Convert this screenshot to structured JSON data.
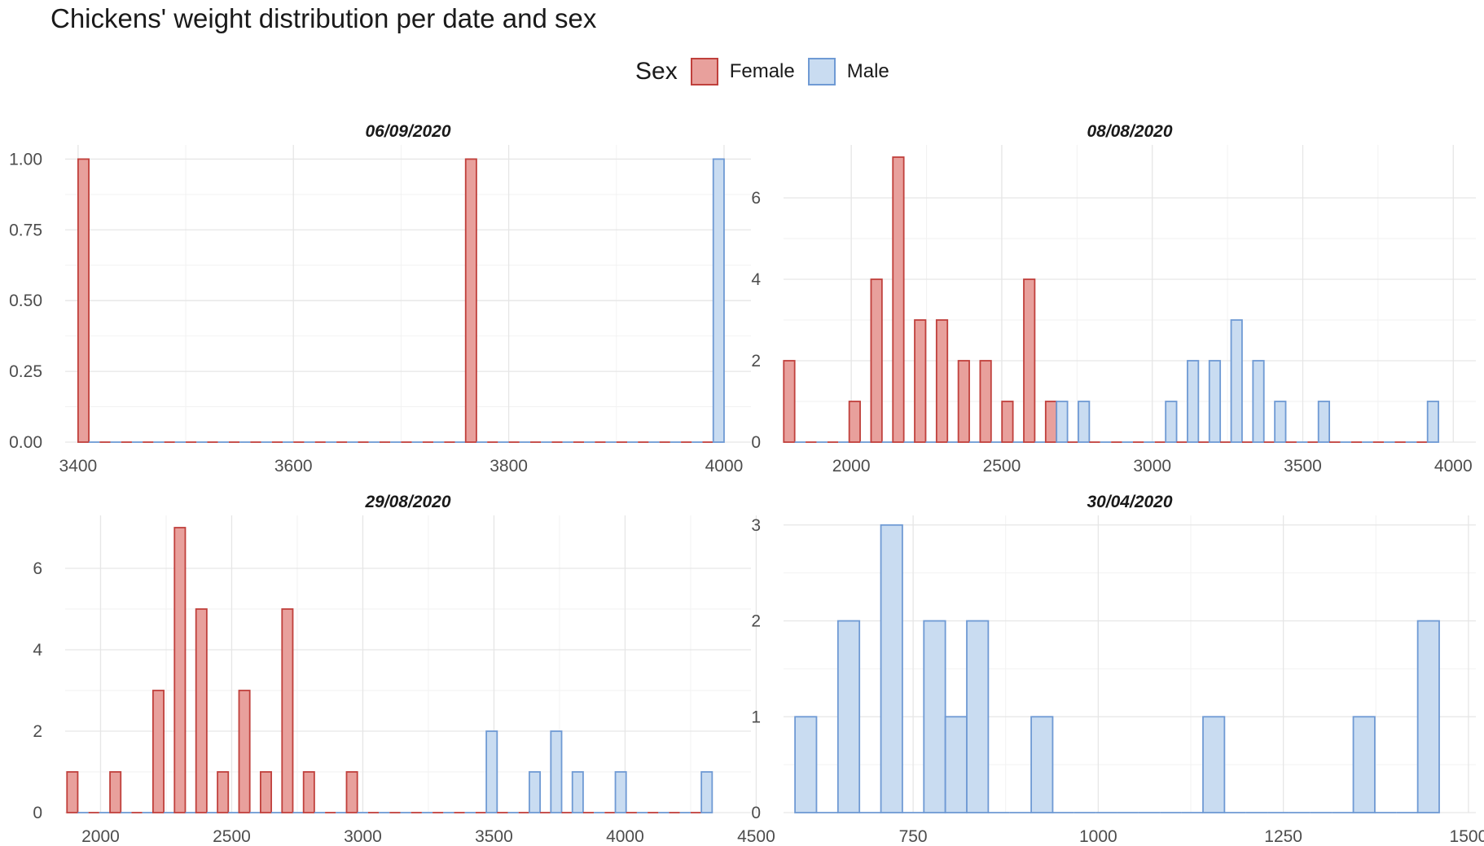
{
  "title": "Chickens' weight distribution per date and sex",
  "legend": {
    "title": "Sex",
    "items": [
      {
        "label": "Female",
        "fill": "#e8a09c",
        "stroke": "#c0403c"
      },
      {
        "label": "Male",
        "fill": "#c9dcf1",
        "stroke": "#6f9ad4"
      }
    ]
  },
  "colors": {
    "grid_major": "#e6e6e6",
    "grid_minor": "#f2f2f2",
    "female_fill": "#e8a09c",
    "female_stroke": "#c0403c",
    "male_fill": "#c9dcf1",
    "male_stroke": "#6f9ad4"
  },
  "chart_data": [
    {
      "type": "bar",
      "title": "06/09/2020",
      "xlabel": "",
      "ylabel": "",
      "xlim": [
        3388,
        4025
      ],
      "ylim": [
        0,
        1.05
      ],
      "xticks": [
        3400,
        3600,
        3800,
        4000
      ],
      "xtick_labels": [
        "3400",
        "3600",
        "3800",
        "4000"
      ],
      "yticks": [
        0,
        0.25,
        0.5,
        0.75,
        1.0
      ],
      "ytick_labels": [
        "0.00",
        "0.25",
        "0.50",
        "0.75",
        "1.00"
      ],
      "bin_width": 20,
      "bin_start": 3410,
      "bin_count": 30,
      "series": [
        {
          "name": "Female",
          "bars": [
            {
              "bin": 0,
              "value": 1
            },
            {
              "bin": 18,
              "value": 1
            }
          ]
        },
        {
          "name": "Male",
          "bars": [
            {
              "bin": 29,
              "value": 1
            }
          ]
        }
      ]
    },
    {
      "type": "bar",
      "title": "08/08/2020",
      "xlabel": "",
      "ylabel": "",
      "xlim": [
        1775,
        4075
      ],
      "ylim": [
        0,
        7.3
      ],
      "xticks": [
        2000,
        2500,
        3000,
        3500,
        4000
      ],
      "xtick_labels": [
        "2000",
        "2500",
        "3000",
        "3500",
        "4000"
      ],
      "yticks": [
        0,
        2,
        4,
        6
      ],
      "ytick_labels": [
        "0",
        "2",
        "4",
        "6"
      ],
      "bin_width": 72.5,
      "bin_start": 1812,
      "bin_count": 30,
      "series": [
        {
          "name": "Female",
          "bars": [
            {
              "bin": 0,
              "value": 2
            },
            {
              "bin": 3,
              "value": 1
            },
            {
              "bin": 4,
              "value": 4
            },
            {
              "bin": 5,
              "value": 7
            },
            {
              "bin": 6,
              "value": 3
            },
            {
              "bin": 7,
              "value": 3
            },
            {
              "bin": 8,
              "value": 2
            },
            {
              "bin": 9,
              "value": 2
            },
            {
              "bin": 10,
              "value": 1
            },
            {
              "bin": 11,
              "value": 4
            },
            {
              "bin": 12,
              "value": 1
            }
          ]
        },
        {
          "name": "Male",
          "bars": [
            {
              "bin": 12,
              "value": 1
            },
            {
              "bin": 13,
              "value": 1
            },
            {
              "bin": 17,
              "value": 1
            },
            {
              "bin": 18,
              "value": 2
            },
            {
              "bin": 19,
              "value": 2
            },
            {
              "bin": 20,
              "value": 3
            },
            {
              "bin": 21,
              "value": 2
            },
            {
              "bin": 22,
              "value": 1
            },
            {
              "bin": 24,
              "value": 1
            },
            {
              "bin": 29,
              "value": 1
            }
          ]
        }
      ]
    },
    {
      "type": "bar",
      "title": "29/08/2020",
      "xlabel": "",
      "ylabel": "",
      "xlim": [
        1865,
        4480
      ],
      "ylim": [
        0,
        7.3
      ],
      "xticks": [
        2000,
        2500,
        3000,
        3500,
        4000,
        4500
      ],
      "xtick_labels": [
        "2000",
        "2500",
        "3000",
        "3500",
        "4000",
        "4500"
      ],
      "yticks": [
        0,
        2,
        4,
        6
      ],
      "ytick_labels": [
        "0",
        "2",
        "4",
        "6"
      ],
      "bin_width": 82,
      "bin_start": 1913,
      "bin_count": 30,
      "series": [
        {
          "name": "Female",
          "bars": [
            {
              "bin": 0,
              "value": 1
            },
            {
              "bin": 2,
              "value": 1
            },
            {
              "bin": 4,
              "value": 3
            },
            {
              "bin": 5,
              "value": 7
            },
            {
              "bin": 6,
              "value": 5
            },
            {
              "bin": 7,
              "value": 1
            },
            {
              "bin": 8,
              "value": 3
            },
            {
              "bin": 9,
              "value": 1
            },
            {
              "bin": 10,
              "value": 5
            },
            {
              "bin": 11,
              "value": 1
            },
            {
              "bin": 13,
              "value": 1
            }
          ]
        },
        {
          "name": "Male",
          "bars": [
            {
              "bin": 19,
              "value": 2
            },
            {
              "bin": 21,
              "value": 1
            },
            {
              "bin": 22,
              "value": 2
            },
            {
              "bin": 23,
              "value": 1
            },
            {
              "bin": 25,
              "value": 1
            },
            {
              "bin": 29,
              "value": 1
            }
          ]
        }
      ]
    },
    {
      "type": "bar",
      "title": "30/04/2020",
      "xlabel": "",
      "ylabel": "",
      "xlim": [
        575,
        1510
      ],
      "ylim": [
        0,
        3.1
      ],
      "xticks": [
        750,
        1000,
        1250,
        1500
      ],
      "xtick_labels": [
        "750",
        "1000",
        "1250",
        "1500"
      ],
      "yticks": [
        0,
        1,
        2,
        3
      ],
      "ytick_labels": [
        "0",
        "1",
        "2",
        "3"
      ],
      "bin_width": 29,
      "bin_start": 605,
      "bin_count": 30,
      "series": [
        {
          "name": "Female",
          "bars": []
        },
        {
          "name": "Male",
          "bars": [
            {
              "bin": 0,
              "value": 1
            },
            {
              "bin": 2,
              "value": 2
            },
            {
              "bin": 4,
              "value": 3
            },
            {
              "bin": 6,
              "value": 2
            },
            {
              "bin": 7,
              "value": 1
            },
            {
              "bin": 8,
              "value": 2
            },
            {
              "bin": 11,
              "value": 1
            },
            {
              "bin": 19,
              "value": 1
            },
            {
              "bin": 26,
              "value": 1
            },
            {
              "bin": 29,
              "value": 2
            }
          ]
        }
      ]
    }
  ]
}
